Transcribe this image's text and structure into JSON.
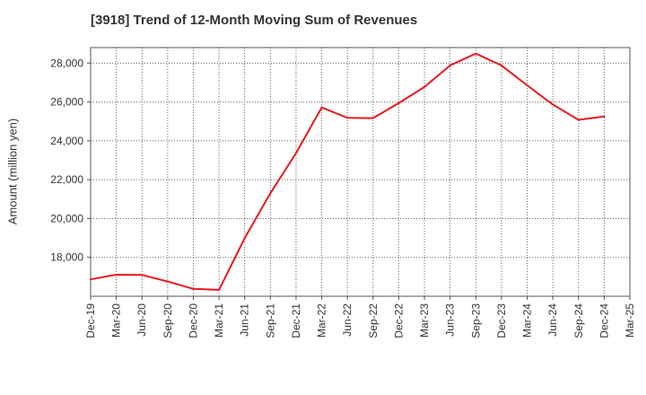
{
  "chart_data": {
    "type": "line",
    "title": "[3918]  Trend of 12-Month Moving Sum of Revenues",
    "xlabel": "",
    "ylabel": "Amount (million yen)",
    "categories": [
      "Dec-19",
      "Mar-20",
      "Jun-20",
      "Sep-20",
      "Dec-20",
      "Mar-21",
      "Jun-21",
      "Sep-21",
      "Dec-21",
      "Mar-22",
      "Jun-22",
      "Sep-22",
      "Dec-22",
      "Mar-23",
      "Jun-23",
      "Sep-23",
      "Dec-23",
      "Mar-24",
      "Jun-24",
      "Sep-24",
      "Dec-24",
      "Mar-25"
    ],
    "series": [
      {
        "values": [
          16870,
          17110,
          17100,
          16760,
          16380,
          16330,
          18990,
          21300,
          23370,
          25720,
          25180,
          25170,
          25940,
          26770,
          27880,
          28490,
          27880,
          26860,
          25870,
          25080,
          25250,
          null
        ]
      }
    ],
    "ylim": [
      16000,
      28800
    ],
    "yticks": [
      18000,
      20000,
      22000,
      24000,
      26000,
      28000
    ],
    "ytick_labels": [
      "18,000",
      "20,000",
      "22,000",
      "24,000",
      "26,000",
      "28,000"
    ],
    "grid": true,
    "line_color": "#e8191e"
  }
}
